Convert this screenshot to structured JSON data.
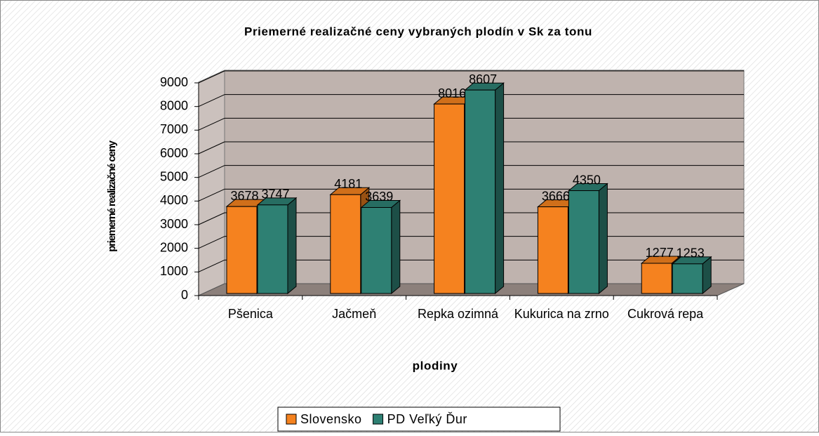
{
  "chart_data": {
    "type": "bar",
    "title": "Priemerné realizačné ceny vybraných plodín v Sk za tonu",
    "y_label": "priemerné realizačné ceny",
    "x_label": "plodiny",
    "categories": [
      "Pšenica",
      "Jačmeň",
      "Repka ozimná",
      "Kukurica na zrno",
      "Cukrová repa"
    ],
    "series": [
      {
        "name": "Slovensko",
        "color": "#f5821f",
        "values": [
          3678,
          4181,
          8016,
          3666,
          1277
        ]
      },
      {
        "name": "PD Veľký Ďur",
        "color": "#2e8073",
        "values": [
          3747,
          3639,
          8607,
          4350,
          1253
        ]
      }
    ],
    "ylim": [
      0,
      9000
    ],
    "yticks": [
      0,
      1000,
      2000,
      3000,
      4000,
      5000,
      6000,
      7000,
      8000,
      9000
    ],
    "grid": true,
    "legend": "bottom"
  }
}
